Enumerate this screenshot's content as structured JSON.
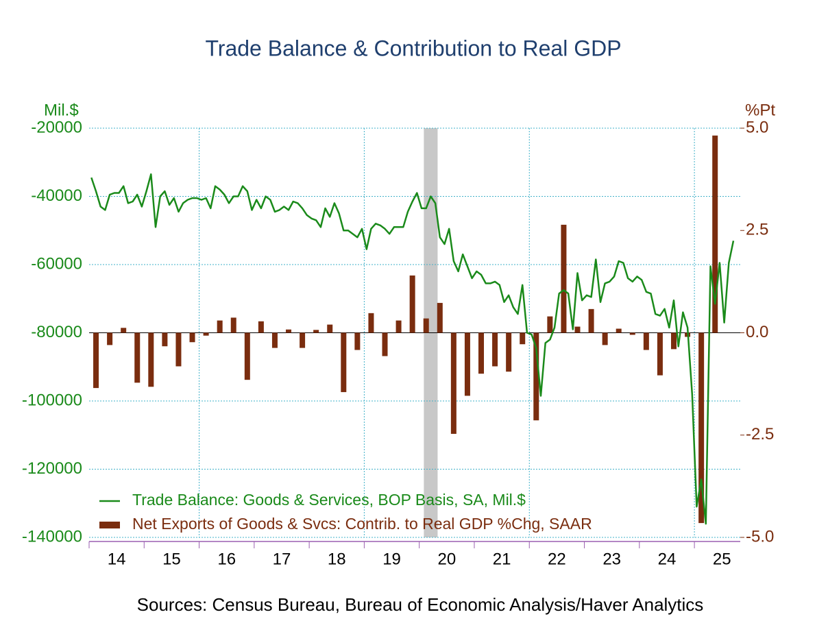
{
  "chart_data": {
    "type": "bar-line",
    "title": "Trade Balance & Contribution to Real GDP",
    "source": "Sources:  Census Bureau, Bureau of Economic Analysis/Haver Analytics",
    "y_unit": "Mil.$",
    "y2_unit": "%Pt",
    "ylim": [
      -140000,
      -20000
    ],
    "yticks": [
      -20000,
      -40000,
      -60000,
      -80000,
      -100000,
      -120000,
      -140000
    ],
    "y2lim": [
      -5,
      5
    ],
    "y2ticks": [
      {
        "value": 5,
        "label": "5.0"
      },
      {
        "value": 2.5,
        "label": "2.5"
      },
      {
        "value": 0,
        "label": "0.0"
      },
      {
        "value": -2.5,
        "label": "-2.5"
      },
      {
        "value": -5,
        "label": "-5.0"
      }
    ],
    "grid": true,
    "year_labels": [
      "14",
      "15",
      "16",
      "17",
      "18",
      "19",
      "20",
      "21",
      "22",
      "23",
      "24",
      "25"
    ],
    "shading": {
      "from": 73,
      "to": 75,
      "color": "#c8c8c8"
    },
    "categories": [
      null,
      null,
      null,
      null,
      null,
      null,
      null,
      null,
      null,
      null,
      null,
      null,
      null,
      null,
      null,
      null,
      null,
      null,
      null,
      null,
      null,
      null,
      null,
      null,
      null,
      null,
      null,
      null,
      null,
      null,
      null,
      null,
      null,
      null,
      null,
      null,
      null,
      null,
      null,
      null,
      null,
      null,
      null,
      null,
      null,
      null,
      null,
      null,
      null,
      null,
      null,
      null,
      null,
      null,
      null,
      null,
      null,
      null,
      null,
      null,
      null,
      null,
      null,
      null,
      null,
      null,
      null,
      null,
      null,
      null,
      null,
      null,
      null,
      null,
      null,
      null,
      null,
      null,
      null,
      null,
      null,
      null,
      null,
      null,
      null,
      null,
      null,
      null,
      null,
      null,
      null,
      null,
      null,
      null,
      null,
      null,
      null,
      null,
      null,
      null,
      null,
      null,
      null,
      null,
      null,
      null,
      null,
      null,
      null,
      null,
      null,
      null,
      null,
      null,
      null,
      null,
      null,
      null,
      null,
      null,
      null,
      null,
      null,
      null,
      null,
      null,
      null,
      null,
      null,
      null,
      null,
      null,
      null,
      null,
      null,
      null,
      null,
      null,
      null,
      null,
      null,
      null
    ],
    "series": [
      {
        "name": "Trade Balance: Goods & Services, BOP Basis, SA, Mil.$",
        "type": "line",
        "axis": "y",
        "color": "#1a8a1a",
        "values": [
          -34500,
          -38500,
          -43000,
          -44000,
          -39500,
          -39000,
          -39000,
          -37000,
          -42000,
          -41500,
          -39500,
          -43000,
          -38500,
          -33500,
          -49000,
          -40000,
          -38500,
          -42500,
          -40500,
          -44500,
          -42000,
          -41000,
          -40500,
          -40500,
          -41000,
          -40500,
          -43500,
          -37000,
          -38000,
          -39500,
          -42000,
          -40000,
          -40000,
          -37000,
          -38500,
          -44000,
          -41000,
          -43500,
          -40000,
          -41000,
          -44500,
          -44000,
          -43000,
          -44000,
          -41500,
          -42000,
          -43500,
          -45500,
          -46500,
          -47000,
          -49000,
          -43500,
          -46000,
          -42000,
          -45000,
          -50000,
          -50000,
          -51000,
          -52000,
          -49500,
          -55500,
          -49500,
          -48000,
          -48500,
          -49500,
          -51000,
          -49000,
          -49000,
          -49000,
          -44500,
          -41500,
          -39000,
          -43500,
          -43500,
          -40000,
          -42000,
          -52000,
          -54000,
          -49500,
          -59000,
          -62000,
          -57000,
          -60500,
          -64000,
          -62000,
          -63000,
          -65500,
          -65500,
          -65000,
          -66000,
          -71000,
          -69000,
          -72500,
          -74500,
          -66000,
          -80000,
          -80500,
          -84500,
          -98500,
          -83000,
          -82000,
          -78500,
          -68500,
          -67500,
          -68500,
          -79000,
          -62500,
          -70500,
          -69000,
          -69500,
          -58500,
          -71000,
          -65500,
          -65000,
          -63500,
          -59000,
          -59500,
          -64000,
          -65000,
          -63500,
          -64500,
          -68000,
          -68500,
          -74500,
          -75000,
          -73000,
          -78500,
          -70500,
          -84000,
          -74000,
          -78500,
          -98000,
          -131000,
          -123000,
          -136000,
          -60500,
          -71500,
          -59500,
          -77000,
          -59500,
          -53000,
          null
        ]
      },
      {
        "name": "Net Exports of Goods & Svcs: Contrib. to Real GDP %Chg, SAAR",
        "type": "bar",
        "axis": "y2",
        "color": "#7a2d0f",
        "values": [
          null,
          -1.35,
          null,
          null,
          -0.3,
          null,
          null,
          0.12,
          null,
          null,
          -1.22,
          null,
          null,
          -1.32,
          null,
          null,
          -0.33,
          null,
          null,
          -0.82,
          null,
          null,
          -0.23,
          null,
          null,
          -0.07,
          null,
          null,
          0.3,
          null,
          null,
          0.37,
          null,
          null,
          -1.15,
          null,
          null,
          0.28,
          null,
          null,
          -0.37,
          null,
          null,
          0.08,
          null,
          null,
          -0.37,
          null,
          null,
          0.07,
          null,
          null,
          0.2,
          null,
          null,
          -1.45,
          null,
          null,
          -0.42,
          null,
          null,
          0.48,
          null,
          null,
          -0.57,
          null,
          null,
          0.3,
          null,
          null,
          1.4,
          null,
          null,
          0.35,
          null,
          null,
          0.73,
          null,
          null,
          -2.47,
          null,
          null,
          -1.54,
          null,
          null,
          -1.0,
          null,
          null,
          -0.82,
          null,
          null,
          -0.95,
          null,
          null,
          -0.28,
          null,
          null,
          -2.14,
          null,
          null,
          0.4,
          null,
          null,
          2.64,
          null,
          null,
          0.15,
          null,
          null,
          0.58,
          null,
          null,
          -0.3,
          null,
          null,
          0.1,
          null,
          null,
          -0.05,
          null,
          null,
          -0.42,
          null,
          null,
          -1.04,
          null,
          null,
          -0.4,
          null,
          null,
          -0.1,
          null,
          null,
          -4.65,
          null,
          null,
          4.82,
          null,
          null,
          null,
          null,
          null
        ]
      }
    ]
  }
}
